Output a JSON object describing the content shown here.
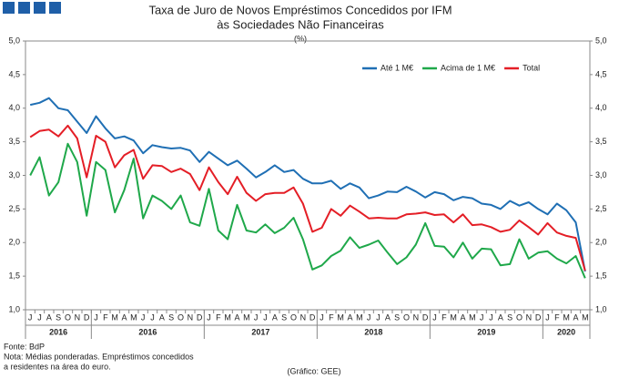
{
  "chart_data": {
    "type": "line",
    "title": "Taxa de Juro de Novos Empréstimos Concedidos por IFM",
    "subtitle": "às Sociedades Não Financeiras",
    "unit": "(%)",
    "categories": [
      "J",
      "J",
      "A",
      "S",
      "O",
      "N",
      "D",
      "J",
      "F",
      "M",
      "A",
      "M",
      "J",
      "J",
      "A",
      "S",
      "O",
      "N",
      "D",
      "J",
      "F",
      "M",
      "A",
      "M",
      "J",
      "J",
      "A",
      "S",
      "O",
      "N",
      "D",
      "J",
      "F",
      "M",
      "A",
      "M",
      "J",
      "J",
      "A",
      "S",
      "O",
      "N",
      "D",
      "J",
      "F",
      "M",
      "A",
      "M",
      "J",
      "J",
      "A",
      "S",
      "O",
      "N",
      "D",
      "J",
      "F",
      "M",
      "A",
      "M"
    ],
    "year_labels": [
      "2016",
      "2016",
      "2017",
      "2018",
      "2019",
      "2020"
    ],
    "series": [
      {
        "name": "Até 1 M€",
        "color": "#1f6fb4",
        "values": [
          4.05,
          4.08,
          4.15,
          4.0,
          3.97,
          3.8,
          3.63,
          3.88,
          3.7,
          3.55,
          3.58,
          3.52,
          3.33,
          3.45,
          3.42,
          3.4,
          3.41,
          3.37,
          3.2,
          3.35,
          3.25,
          3.15,
          3.22,
          3.1,
          2.97,
          3.05,
          3.15,
          3.05,
          3.08,
          2.95,
          2.88,
          2.88,
          2.92,
          2.8,
          2.88,
          2.82,
          2.66,
          2.7,
          2.76,
          2.75,
          2.83,
          2.76,
          2.67,
          2.75,
          2.72,
          2.63,
          2.68,
          2.66,
          2.58,
          2.56,
          2.5,
          2.62,
          2.55,
          2.6,
          2.5,
          2.42,
          2.58,
          2.48,
          2.3,
          1.57
        ]
      },
      {
        "name": "Acima de 1 M€",
        "color": "#1fa84a",
        "values": [
          3.0,
          3.27,
          2.7,
          2.9,
          3.47,
          3.2,
          2.4,
          3.2,
          3.08,
          2.45,
          2.78,
          3.25,
          2.36,
          2.7,
          2.62,
          2.5,
          2.7,
          2.3,
          2.25,
          2.8,
          2.18,
          2.05,
          2.56,
          2.18,
          2.15,
          2.27,
          2.14,
          2.22,
          2.37,
          2.05,
          1.6,
          1.66,
          1.8,
          1.88,
          2.08,
          1.92,
          1.97,
          2.03,
          1.85,
          1.68,
          1.78,
          1.97,
          2.29,
          1.95,
          1.94,
          1.78,
          2.0,
          1.76,
          1.91,
          1.9,
          1.66,
          1.68,
          2.05,
          1.76,
          1.85,
          1.87,
          1.76,
          1.69,
          1.8,
          1.47
        ]
      },
      {
        "name": "Total",
        "color": "#e41e26",
        "values": [
          3.57,
          3.66,
          3.68,
          3.58,
          3.74,
          3.55,
          2.97,
          3.59,
          3.5,
          3.12,
          3.3,
          3.38,
          2.95,
          3.15,
          3.14,
          3.05,
          3.1,
          3.02,
          2.78,
          3.12,
          2.9,
          2.72,
          2.98,
          2.74,
          2.62,
          2.72,
          2.74,
          2.74,
          2.82,
          2.58,
          2.16,
          2.22,
          2.5,
          2.4,
          2.55,
          2.46,
          2.36,
          2.37,
          2.36,
          2.36,
          2.42,
          2.43,
          2.45,
          2.41,
          2.42,
          2.3,
          2.42,
          2.26,
          2.27,
          2.23,
          2.16,
          2.19,
          2.33,
          2.23,
          2.12,
          2.29,
          2.15,
          2.1,
          2.07,
          1.58
        ]
      }
    ],
    "ylim": [
      1,
      5
    ],
    "yticks": [
      {
        "value": 1,
        "label": "1,0"
      },
      {
        "value": 1.5,
        "label": "1,5"
      },
      {
        "value": 2,
        "label": "2,0"
      },
      {
        "value": 2.5,
        "label": "2,5"
      },
      {
        "value": 3,
        "label": "3,0"
      },
      {
        "value": 3.5,
        "label": "3,5"
      },
      {
        "value": 4,
        "label": "4,0"
      },
      {
        "value": 4.5,
        "label": "4,5"
      },
      {
        "value": 5,
        "label": "5,0"
      }
    ],
    "y2lim": [
      1,
      5
    ],
    "y2ticks": [
      {
        "value": 1,
        "label": "1,0"
      },
      {
        "value": 1.5,
        "label": "1,5"
      },
      {
        "value": 2,
        "label": "2,0"
      },
      {
        "value": 2.5,
        "label": "2,5"
      },
      {
        "value": 3,
        "label": "3,0"
      },
      {
        "value": 3.5,
        "label": "3,5"
      },
      {
        "value": 4,
        "label": "4,0"
      },
      {
        "value": 4.5,
        "label": "4,5"
      },
      {
        "value": 5,
        "label": "5,0"
      }
    ],
    "grid": false,
    "legend": "upper right",
    "notes": [
      "Fonte: BdP",
      "Nota: Médias ponderadas. Empréstimos concedidos",
      "a residentes na área do euro."
    ],
    "credit": "(Gráfico: GEE)"
  }
}
